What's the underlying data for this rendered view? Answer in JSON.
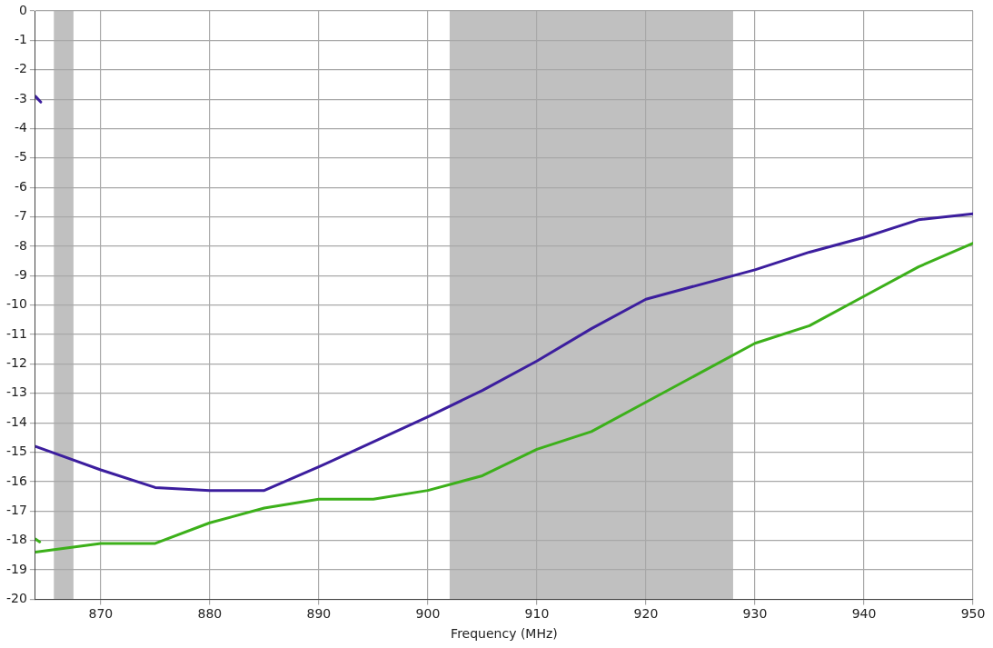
{
  "chart_data": {
    "type": "line",
    "xlabel": "Frequency (MHz)",
    "xlim": [
      864,
      950
    ],
    "xticks": [
      870,
      880,
      890,
      900,
      910,
      920,
      930,
      940,
      950
    ],
    "ylim": [
      -20,
      0
    ],
    "yticks": [
      0,
      -1,
      -2,
      -3,
      -4,
      -5,
      -6,
      -7,
      -8,
      -9,
      -10,
      -11,
      -12,
      -13,
      -14,
      -15,
      -16,
      -17,
      -18,
      -19,
      -20
    ],
    "grid": true,
    "legend": false,
    "marker": "none",
    "line_style": "solid",
    "bands": [
      {
        "axis": "x",
        "from": 865.7,
        "to": 867.5,
        "color": "#c0c0c0"
      },
      {
        "axis": "x",
        "from": 902,
        "to": 928,
        "color": "#c0c0c0"
      }
    ],
    "series": [
      {
        "color": "#3c1e9e",
        "x": [
          864,
          870,
          875,
          880,
          885,
          890,
          900,
          905,
          910,
          915,
          920,
          930,
          935,
          940,
          945,
          950
        ],
        "values": [
          -14.8,
          -15.6,
          -16.2,
          -16.3,
          -16.3,
          -15.5,
          -13.8,
          -12.9,
          -11.9,
          -10.8,
          -9.8,
          -8.8,
          -8.2,
          -7.7,
          -7.1,
          -6.9
        ]
      },
      {
        "color": "#3cb01a",
        "x": [
          864,
          870,
          875,
          880,
          885,
          890,
          895,
          900,
          905,
          910,
          915,
          920,
          925,
          930,
          935,
          940,
          945,
          950
        ],
        "values": [
          -18.4,
          -18.1,
          -18.1,
          -17.4,
          -16.9,
          -16.6,
          -16.6,
          -16.3,
          -15.8,
          -14.9,
          -14.3,
          -13.3,
          -12.3,
          -11.3,
          -10.7,
          -9.7,
          -8.7,
          -7.9
        ]
      },
      {
        "color": "#3c1e9e",
        "x": [
          864,
          864.5
        ],
        "values": [
          -2.9,
          -3.1
        ]
      },
      {
        "color": "#3cb01a",
        "x": [
          864,
          864.4
        ],
        "values": [
          -17.95,
          -18.05
        ]
      }
    ]
  }
}
